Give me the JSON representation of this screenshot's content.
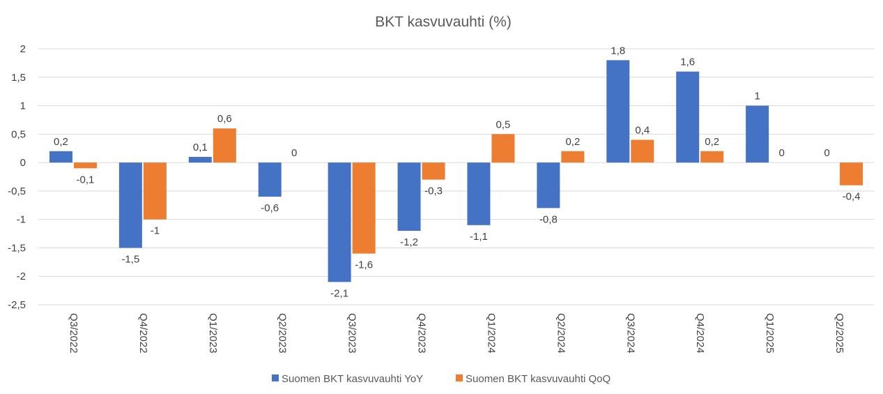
{
  "chart_data": {
    "type": "bar",
    "title": "BKT kasvuvauhti (%)",
    "xlabel": "",
    "ylabel": "",
    "ylim": [
      -2.5,
      2
    ],
    "yticks": [
      2,
      1.5,
      1,
      0.5,
      0,
      -0.5,
      -1,
      -1.5,
      -2,
      -2.5
    ],
    "ytick_labels": [
      "2",
      "1,5",
      "1",
      "0,5",
      "0",
      "-0,5",
      "-1",
      "-1,5",
      "-2",
      "-2,5"
    ],
    "grid": true,
    "legend_position": "bottom",
    "categories": [
      "Q3/2022",
      "Q4/2022",
      "Q1/2023",
      "Q2/2023",
      "Q3/2023",
      "Q4/2023",
      "Q1/2024",
      "Q2/2024",
      "Q3/2024",
      "Q4/2024",
      "Q1/2025",
      "Q2/2025"
    ],
    "series": [
      {
        "name": "Suomen BKT kasvuvauhti YoY",
        "color": "#4472c4",
        "values": [
          0.2,
          -1.5,
          0.1,
          -0.6,
          -2.1,
          -1.2,
          -1.1,
          -0.8,
          1.8,
          1.6,
          1,
          0
        ],
        "labels": [
          "0,2",
          "-1,5",
          "0,1",
          "-0,6",
          "-2,1",
          "-1,2",
          "-1,1",
          "-0,8",
          "1,8",
          "1,6",
          "1",
          "0"
        ]
      },
      {
        "name": "Suomen BKT kasvuvauhti QoQ",
        "color": "#ed7d31",
        "values": [
          -0.1,
          -1,
          0.6,
          0,
          -1.6,
          -0.3,
          0.5,
          0.2,
          0.4,
          0.2,
          0,
          -0.4
        ],
        "labels": [
          "-0,1",
          "-1",
          "0,6",
          "0",
          "-1,6",
          "-0,3",
          "0,5",
          "0,2",
          "0,4",
          "0,2",
          "0",
          "-0,4"
        ]
      }
    ]
  }
}
